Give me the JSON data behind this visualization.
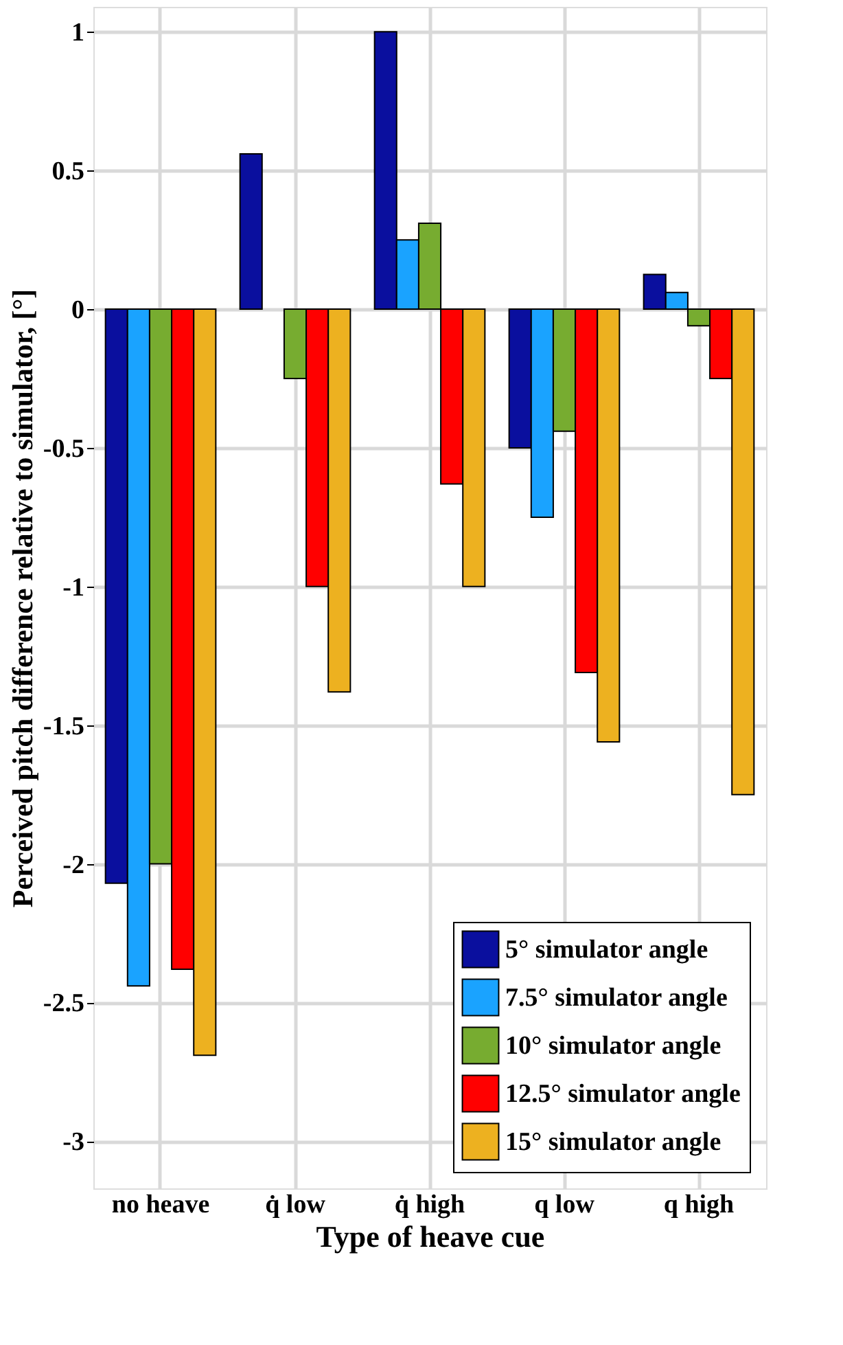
{
  "chart_data": {
    "type": "bar",
    "xlabel": "Type of heave cue",
    "ylabel": "Perceived pitch difference relative to simulator, [°]",
    "categories": [
      "no heave",
      "q̇ low",
      "q̇ high",
      "q low",
      "q high"
    ],
    "series": [
      {
        "name": "5° simulator angle",
        "color": "#0a0f9e",
        "values": [
          -2.07,
          0.56,
          1.0,
          -0.5,
          0.125
        ]
      },
      {
        "name": "7.5° simulator angle",
        "color": "#1aa3ff",
        "values": [
          -2.44,
          null,
          0.25,
          -0.75,
          0.06
        ]
      },
      {
        "name": "10° simulator angle",
        "color": "#77ac30",
        "values": [
          -2.0,
          -0.25,
          0.31,
          -0.44,
          -0.06
        ]
      },
      {
        "name": "12.5° simulator angle",
        "color": "#ff0000",
        "values": [
          -2.38,
          -1.0,
          -0.63,
          -1.31,
          -0.25
        ]
      },
      {
        "name": "15° simulator angle",
        "color": "#edb120",
        "values": [
          -2.69,
          -1.38,
          -1.0,
          -1.56,
          -1.75
        ]
      }
    ],
    "ylim": [
      -3.17,
      1.09
    ],
    "yticks": [
      -3,
      -2.5,
      -2,
      -1.5,
      -1,
      -0.5,
      0,
      0.5,
      1
    ],
    "grid": true,
    "legend": "bottom right"
  }
}
